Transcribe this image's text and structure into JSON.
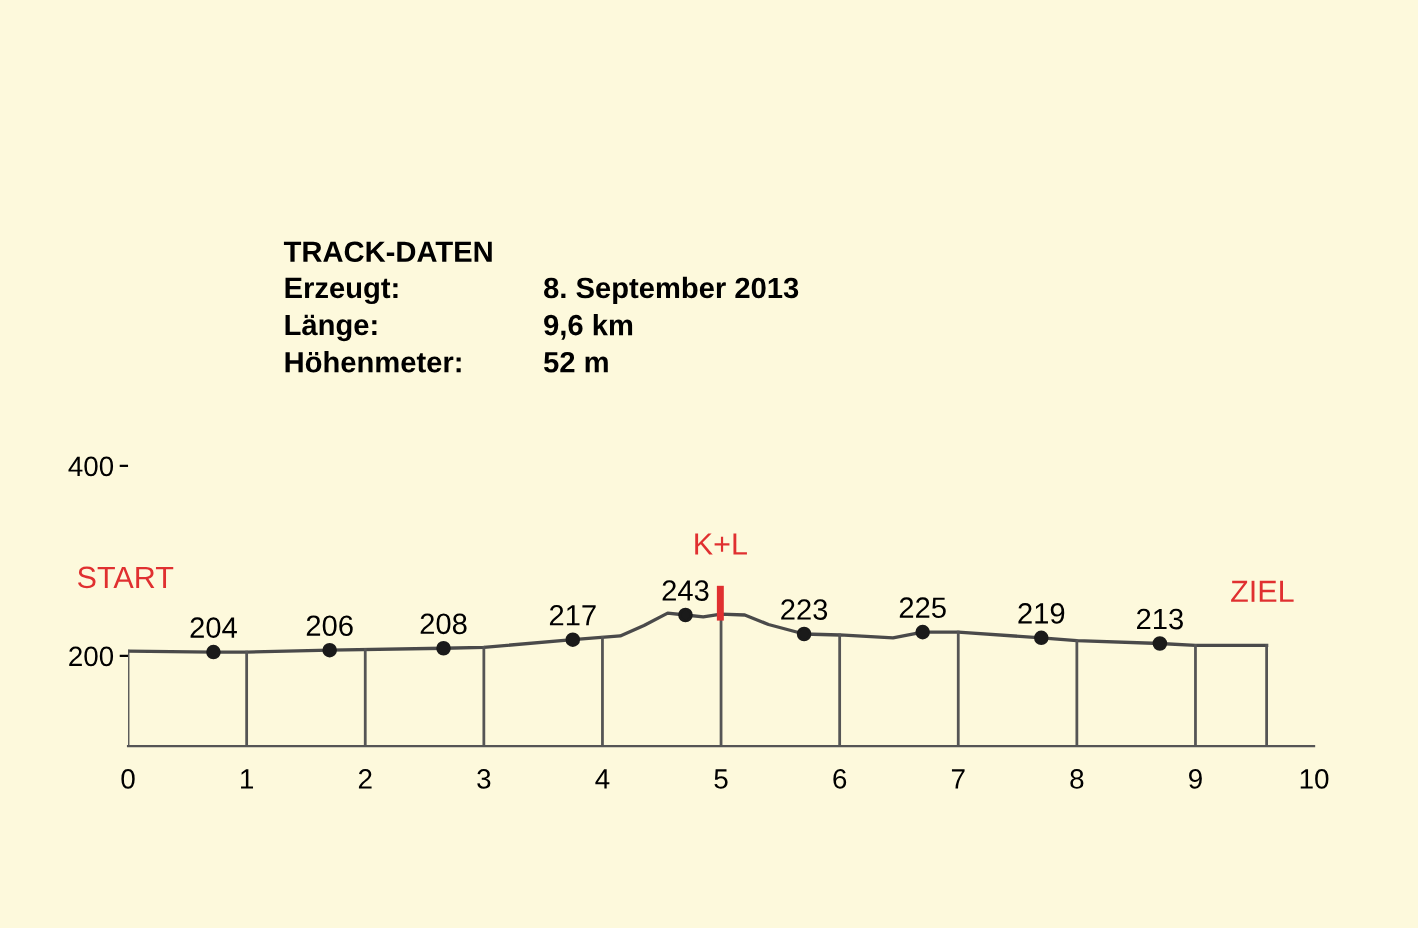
{
  "chart_data": {
    "type": "line",
    "title": "TRACK-DATEN",
    "annotations": [
      "Erzeugt:",
      "8. September 2013",
      "Länge:",
      "9,6 km",
      "Höhenmeter:",
      "52 m",
      "START",
      "K+L",
      "ZIEL"
    ],
    "series": [
      {
        "color": "#4a4a4a",
        "x": [
          0,
          0.72,
          1.0,
          1.7,
          2.66,
          3.0,
          3.75,
          4.15,
          4.35,
          4.55,
          4.7,
          4.85,
          5.0,
          5.2,
          5.4,
          5.7,
          6.0,
          6.45,
          6.7,
          7.0,
          7.7,
          8.0,
          8.7,
          9.0,
          9.6
        ],
        "values": [
          205,
          204,
          204,
          206,
          208,
          209,
          217,
          221,
          232,
          245,
          243,
          241,
          244,
          243,
          233,
          223,
          222,
          219,
          225,
          225,
          219,
          216,
          213,
          211,
          211
        ]
      },
      {
        "type": "scatter",
        "marker": "circle",
        "color": "#1a1a1a",
        "x": [
          0.72,
          1.7,
          2.66,
          3.75,
          4.7,
          5.7,
          6.7,
          7.7,
          8.7
        ],
        "values": [
          204,
          206,
          208,
          217,
          243,
          223,
          225,
          219,
          213
        ],
        "value_labels": [
          "204",
          "206",
          "208",
          "217",
          "243",
          "223",
          "225",
          "219",
          "213"
        ]
      }
    ],
    "xlim": [
      0,
      10
    ],
    "xticks": [
      0,
      1,
      2,
      3,
      4,
      5,
      6,
      7,
      8,
      9,
      10
    ],
    "ylim": [
      105,
      400
    ],
    "yticks": [
      200,
      400
    ],
    "line_style": "solid",
    "legend": false
  }
}
